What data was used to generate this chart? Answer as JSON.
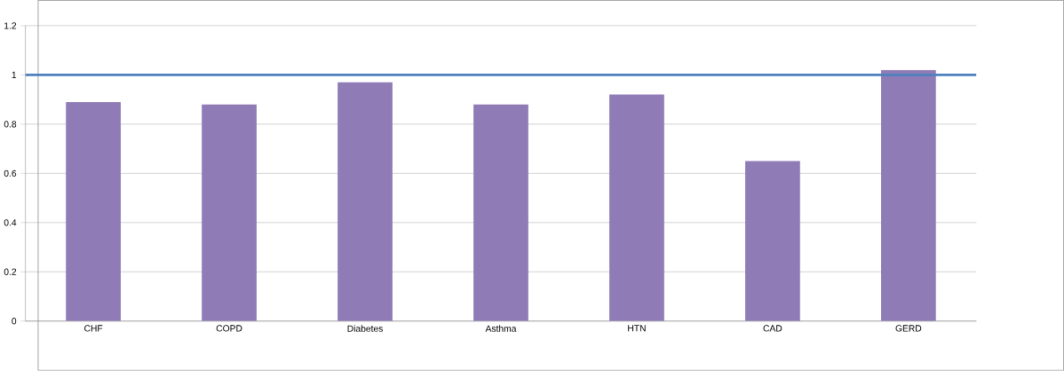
{
  "chart_data": {
    "type": "bar",
    "categories": [
      "CHF",
      "COPD",
      "Diabetes",
      "Asthma",
      "HTN",
      "CAD",
      "GERD"
    ],
    "values": [
      0.89,
      0.88,
      0.97,
      0.88,
      0.92,
      0.65,
      1.02
    ],
    "color": "#8f7bb6",
    "ylim": [
      0,
      1.2
    ],
    "yticks": [
      0,
      0.2,
      0.4,
      0.6,
      0.8,
      1,
      1.2
    ],
    "grid": "y",
    "ref_lines": [
      {
        "axis": "y",
        "value": 1,
        "color": "#4f81bd"
      }
    ]
  }
}
